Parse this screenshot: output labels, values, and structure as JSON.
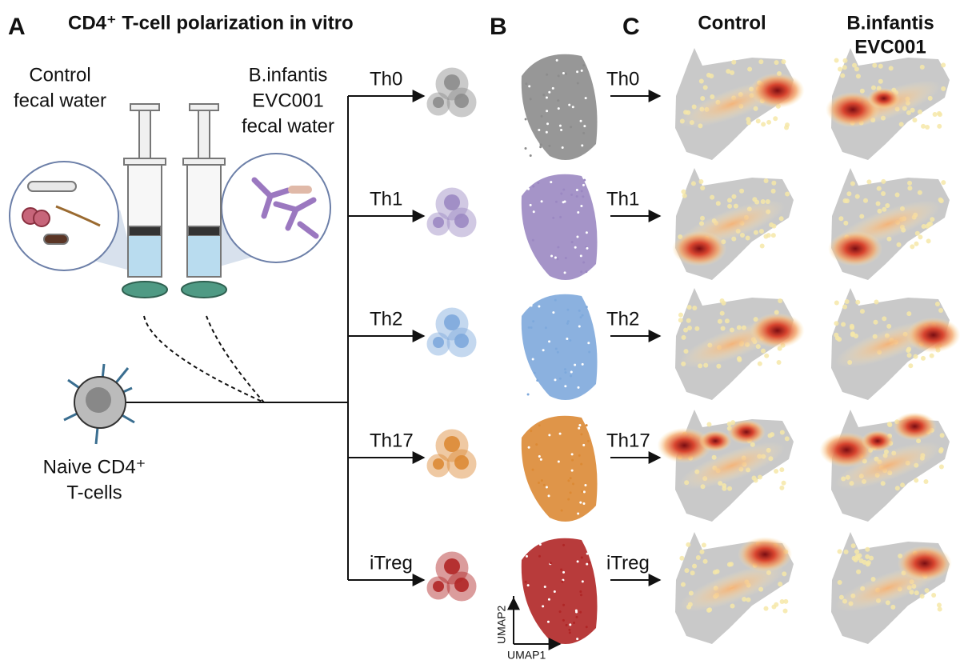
{
  "panel_a": {
    "letter": "A",
    "title": "CD4⁺ T-cell polarization in vitro",
    "control_label": [
      "Control",
      "fecal water"
    ],
    "infantis_label": [
      "B.infantis",
      "EVC001",
      "fecal water"
    ],
    "naive_label": [
      "Naive CD4⁺",
      "T-cells"
    ]
  },
  "subsets": [
    {
      "name": "Th0",
      "color": "#8c8c8c"
    },
    {
      "name": "Th1",
      "color": "#9b88c2"
    },
    {
      "name": "Th2",
      "color": "#7ea9dc"
    },
    {
      "name": "Th17",
      "color": "#dc8a35"
    },
    {
      "name": "iTreg",
      "color": "#b02626"
    }
  ],
  "panel_b": {
    "letter": "B",
    "x_axis": "UMAP1",
    "y_axis": "UMAP2"
  },
  "panel_c": {
    "letter": "C",
    "columns": [
      [
        "Control"
      ],
      [
        "B.infantis",
        "EVC001"
      ]
    ]
  }
}
